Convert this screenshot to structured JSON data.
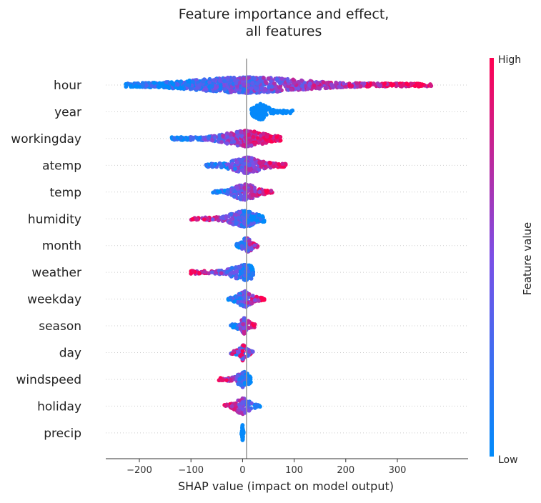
{
  "chart_data": {
    "type": "beeswarm",
    "title": "Feature importance and effect,\nall features",
    "xlabel": "SHAP value (impact on model output)",
    "xlim": [
      -255,
      400
    ],
    "xticks": [
      -200,
      -100,
      0,
      100,
      200,
      300
    ],
    "xtick_labels": [
      "−200",
      "−100",
      "0",
      "100",
      "200",
      "300"
    ],
    "colorbar": {
      "label": "Feature value",
      "high_label": "High",
      "low_label": "Low",
      "low_color": "#008bfb",
      "high_color": "#ff0051"
    },
    "grid": false,
    "features": [
      {
        "name": "hour",
        "shap_min": -228,
        "shap_max": 366,
        "shap_median": 10
      },
      {
        "name": "year",
        "shap_min": 17,
        "shap_max": 97,
        "shap_median": 35
      },
      {
        "name": "workingday",
        "shap_min": -140,
        "shap_max": 74,
        "shap_median": 5
      },
      {
        "name": "atemp",
        "shap_min": -71,
        "shap_max": 84,
        "shap_median": 8
      },
      {
        "name": "temp",
        "shap_min": -58,
        "shap_max": 58,
        "shap_median": 5
      },
      {
        "name": "humidity",
        "shap_min": -101,
        "shap_max": 42,
        "shap_median": 3
      },
      {
        "name": "month",
        "shap_min": -12,
        "shap_max": 33,
        "shap_median": 8
      },
      {
        "name": "weather",
        "shap_min": -103,
        "shap_max": 21,
        "shap_median": 3
      },
      {
        "name": "weekday",
        "shap_min": -28,
        "shap_max": 43,
        "shap_median": 5
      },
      {
        "name": "season",
        "shap_min": -23,
        "shap_max": 25,
        "shap_median": 3
      },
      {
        "name": "day",
        "shap_min": -23,
        "shap_max": 20,
        "shap_median": 0
      },
      {
        "name": "windspeed",
        "shap_min": -47,
        "shap_max": 16,
        "shap_median": 1
      },
      {
        "name": "holiday",
        "shap_min": -37,
        "shap_max": 34,
        "shap_median": 0
      },
      {
        "name": "precip",
        "shap_min": -2,
        "shap_max": 2,
        "shap_median": 0
      }
    ]
  }
}
